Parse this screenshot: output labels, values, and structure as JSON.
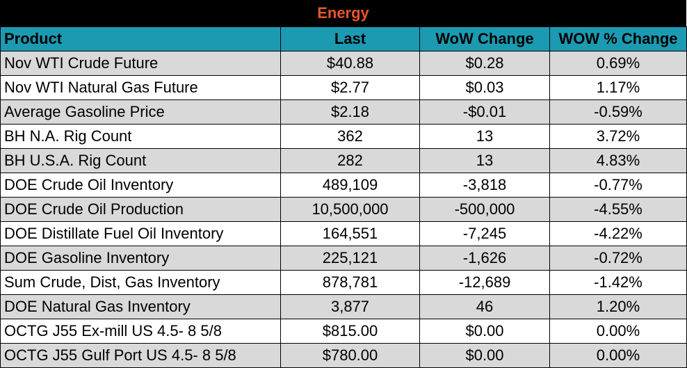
{
  "title": "Energy",
  "columns": {
    "product": "Product",
    "last": "Last",
    "wow_change": "WoW Change",
    "wow_pct_change": "WOW % Change"
  },
  "rows": [
    {
      "product": "Nov WTI Crude Future",
      "last": "$40.88",
      "wow_change": "$0.28",
      "wow_pct_change": "0.69%"
    },
    {
      "product": "Nov WTI Natural Gas Future",
      "last": "$2.77",
      "wow_change": "$0.03",
      "wow_pct_change": "1.17%"
    },
    {
      "product": "Average Gasoline Price",
      "last": "$2.18",
      "wow_change": "-$0.01",
      "wow_pct_change": "-0.59%"
    },
    {
      "product": "BH N.A. Rig Count",
      "last": "362",
      "wow_change": "13",
      "wow_pct_change": "3.72%"
    },
    {
      "product": "BH U.S.A. Rig Count",
      "last": "282",
      "wow_change": "13",
      "wow_pct_change": "4.83%"
    },
    {
      "product": "DOE Crude Oil Inventory",
      "last": "489,109",
      "wow_change": "-3,818",
      "wow_pct_change": "-0.77%"
    },
    {
      "product": "DOE Crude Oil Production",
      "last": "10,500,000",
      "wow_change": "-500,000",
      "wow_pct_change": "-4.55%"
    },
    {
      "product": "DOE Distillate Fuel Oil Inventory",
      "last": "164,551",
      "wow_change": "-7,245",
      "wow_pct_change": "-4.22%"
    },
    {
      "product": "DOE Gasoline Inventory",
      "last": "225,121",
      "wow_change": "-1,626",
      "wow_pct_change": "-0.72%"
    },
    {
      "product": "Sum Crude, Dist, Gas Inventory",
      "last": "878,781",
      "wow_change": "-12,689",
      "wow_pct_change": "-1.42%"
    },
    {
      "product": "DOE Natural Gas Inventory",
      "last": "3,877",
      "wow_change": "46",
      "wow_pct_change": "1.20%"
    },
    {
      "product": "OCTG J55 Ex-mill US 4.5- 8 5/8",
      "last": "$815.00",
      "wow_change": "$0.00",
      "wow_pct_change": "0.00%"
    },
    {
      "product": "OCTG J55 Gulf Port US 4.5- 8 5/8",
      "last": "$780.00",
      "wow_change": "$0.00",
      "wow_pct_change": "0.00%"
    }
  ],
  "colors": {
    "title_background": "#000000",
    "title_text": "#e8552b",
    "header_background": "#1c9ab2",
    "row_shade": "#d9d9d9",
    "row_plain": "#ffffff"
  }
}
